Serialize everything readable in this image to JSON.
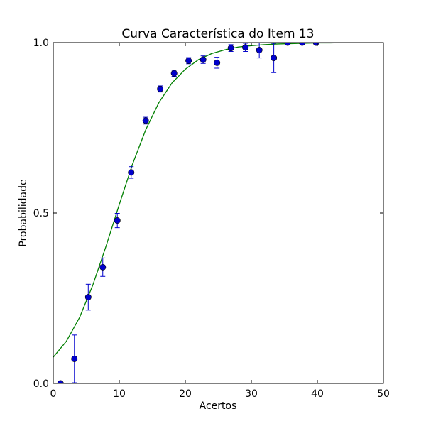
{
  "chart_data": {
    "type": "scatter",
    "title": "Curva Característica do Item 13",
    "xlabel": "Acertos",
    "ylabel": "Probabilidade",
    "xlim": [
      0,
      50
    ],
    "ylim": [
      0.0,
      1.0
    ],
    "xticks": [
      0,
      10,
      20,
      30,
      40,
      50
    ],
    "xtick_labels": [
      "0",
      "10",
      "20",
      "30",
      "40",
      "50"
    ],
    "yticks": [
      0.0,
      0.5,
      1.0
    ],
    "ytick_labels": [
      "0.0",
      "0.5",
      "1.0"
    ],
    "grid": false,
    "colors": {
      "points": "#0000cc",
      "curve": "#007f00",
      "errorbars": "#0000cc"
    },
    "points": [
      {
        "x": 1.1,
        "y": 0.0,
        "err": 0.0
      },
      {
        "x": 3.2,
        "y": 0.072,
        "err": 0.07
      },
      {
        "x": 5.3,
        "y": 0.253,
        "err": 0.038
      },
      {
        "x": 7.5,
        "y": 0.341,
        "err": 0.027
      },
      {
        "x": 9.7,
        "y": 0.478,
        "err": 0.021
      },
      {
        "x": 11.8,
        "y": 0.619,
        "err": 0.017
      },
      {
        "x": 14.0,
        "y": 0.771,
        "err": 0.01
      },
      {
        "x": 16.2,
        "y": 0.864,
        "err": 0.009
      },
      {
        "x": 18.3,
        "y": 0.91,
        "err": 0.009
      },
      {
        "x": 20.5,
        "y": 0.947,
        "err": 0.009
      },
      {
        "x": 22.7,
        "y": 0.95,
        "err": 0.011
      },
      {
        "x": 24.8,
        "y": 0.941,
        "err": 0.016
      },
      {
        "x": 26.9,
        "y": 0.984,
        "err": 0.01
      },
      {
        "x": 29.1,
        "y": 0.986,
        "err": 0.012
      },
      {
        "x": 31.2,
        "y": 0.978,
        "err": 0.023
      },
      {
        "x": 33.4,
        "y": 0.955,
        "err": 0.043
      },
      {
        "x": 35.5,
        "y": 1.0,
        "err": 0.0
      },
      {
        "x": 37.7,
        "y": 1.0,
        "err": 0.0
      },
      {
        "x": 39.8,
        "y": 1.0,
        "err": 0.0
      }
    ],
    "curve": {
      "x": [
        0,
        2,
        4,
        6,
        8,
        10,
        12,
        14,
        16,
        18,
        20,
        22,
        24,
        26,
        28,
        30,
        32,
        34,
        36,
        38,
        40,
        42,
        44,
        45
      ],
      "y": [
        0.077,
        0.124,
        0.194,
        0.289,
        0.403,
        0.525,
        0.643,
        0.744,
        0.824,
        0.882,
        0.922,
        0.95,
        0.968,
        0.979,
        0.987,
        0.991,
        0.994,
        0.996,
        0.997,
        0.998,
        0.999,
        0.999,
        1.0,
        1.0
      ]
    }
  }
}
